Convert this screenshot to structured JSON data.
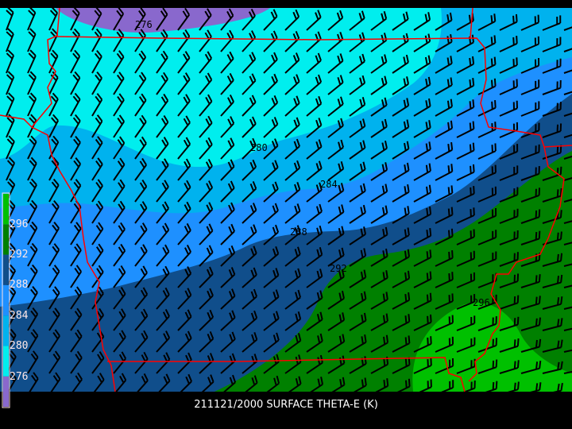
{
  "title": "211121/2000 SURFACE THETA-E (K)",
  "colorbar": {
    "labels": [
      "296",
      "292",
      "288",
      "284",
      "280",
      "276"
    ],
    "colors": [
      "#00c000",
      "#008000",
      "#104e8b",
      "#1e90ff",
      "#00b2ee",
      "#00eeee",
      "#8968cd"
    ]
  },
  "contour_labels": [
    "276",
    "280",
    "284",
    "288",
    "292",
    "296"
  ],
  "colors": {
    "boundary": "#ff0000",
    "barb": "#000000",
    "background": "#000000",
    "text": "#ffffff"
  }
}
